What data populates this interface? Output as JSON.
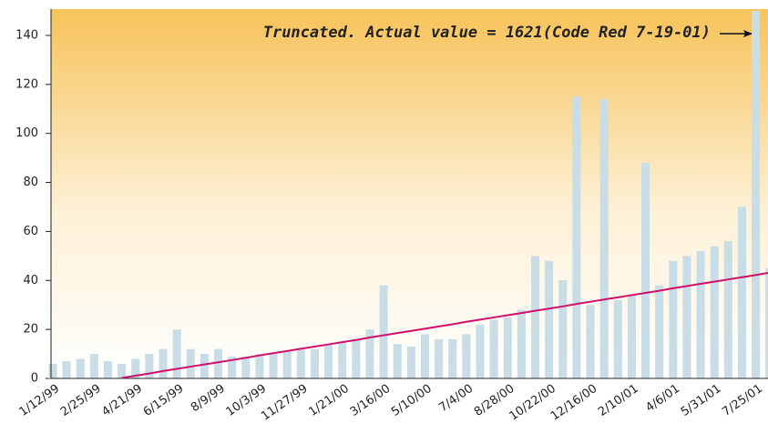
{
  "chart_data": {
    "type": "bar",
    "annotation": "Truncated. Actual value = 1621(Code Red 7-19-01)",
    "categories": [
      "1/12/99",
      null,
      null,
      "2/25/99",
      null,
      null,
      "4/21/99",
      null,
      null,
      "6/15/99",
      null,
      null,
      "8/9/99",
      null,
      null,
      "10/3/99",
      null,
      null,
      "11/27/99",
      null,
      null,
      "1/21/00",
      null,
      null,
      "3/16/00",
      null,
      null,
      "5/10/00",
      null,
      null,
      "7/4/00",
      null,
      null,
      "8/28/00",
      null,
      null,
      "10/22/00",
      null,
      null,
      "12/16/00",
      null,
      null,
      "2/10/01",
      null,
      null,
      "4/6/01",
      null,
      null,
      "5/31/01",
      null,
      null,
      "7/25/01",
      null
    ],
    "values": [
      6,
      7,
      8,
      10,
      7,
      6,
      8,
      10,
      12,
      20,
      12,
      10,
      12,
      9,
      9,
      10,
      10,
      11,
      12,
      12,
      14,
      15,
      16,
      20,
      38,
      14,
      13,
      18,
      16,
      16,
      18,
      22,
      24,
      25,
      28,
      50,
      48,
      40,
      115,
      30,
      114,
      32,
      34,
      88,
      38,
      48,
      50,
      52,
      54,
      56,
      70,
      150,
      45
    ],
    "color": "#c9dde6",
    "trend_line": {
      "color": "#d0106a",
      "values": [
        null,
        null,
        null,
        null,
        null,
        0.2,
        1.1,
        2.0,
        3.0,
        3.9,
        4.8,
        5.7,
        6.6,
        7.5,
        8.4,
        9.4,
        10.3,
        11.2,
        12.1,
        13.0,
        13.9,
        14.8,
        15.7,
        16.7,
        17.6,
        18.5,
        19.4,
        20.3,
        21.2,
        22.1,
        23.1,
        24.0,
        24.9,
        25.8,
        26.7,
        27.6,
        28.5,
        29.4,
        30.4,
        31.3,
        32.2,
        33.1,
        34.0,
        34.9,
        35.8,
        36.8,
        37.7,
        38.6,
        39.5,
        40.4,
        41.3,
        42.2,
        43.2
      ]
    },
    "ylim": [
      0,
      150
    ],
    "yticks": [
      0,
      20,
      40,
      60,
      80,
      100,
      120,
      140
    ],
    "grid": false
  }
}
